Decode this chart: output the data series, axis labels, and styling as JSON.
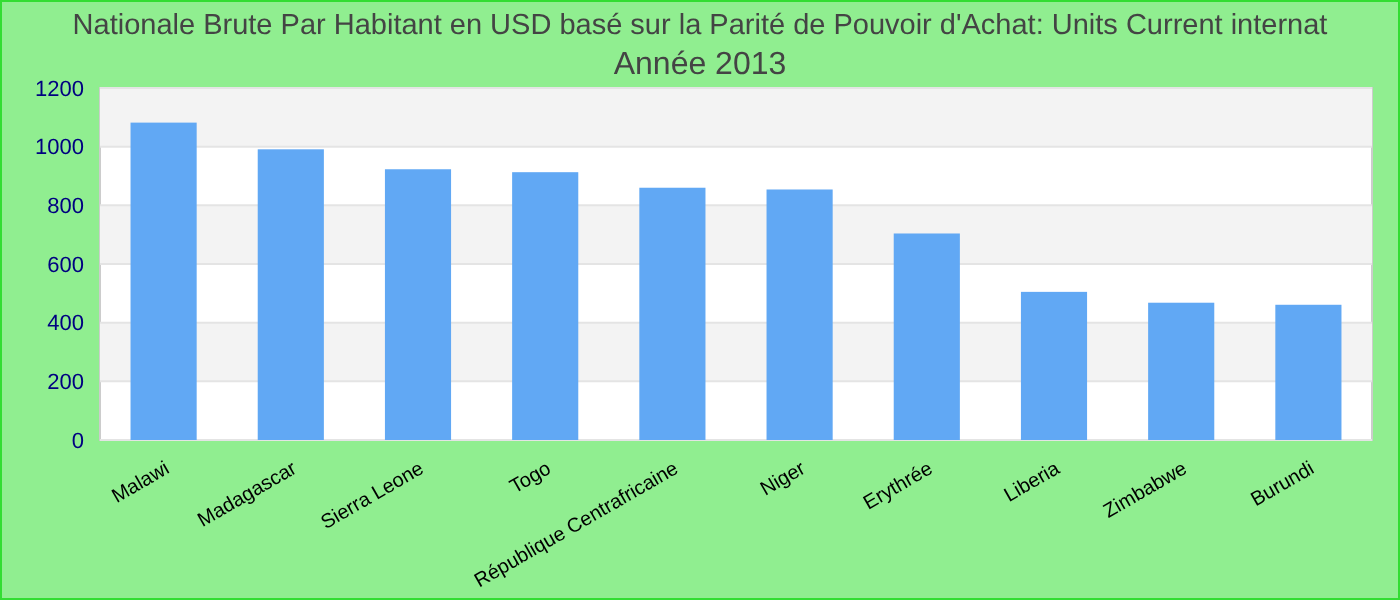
{
  "chart_data": {
    "type": "bar",
    "title": "Nationale Brute Par Habitant en USD basé sur la Parité de Pouvoir d'Achat: Units Current internat",
    "subtitle": "Année 2013",
    "categories": [
      "Malawi",
      "Madagascar",
      "Sierra Leone",
      "Togo",
      "République Centrafricaine",
      "Niger",
      "Erythrée",
      "Liberia",
      "Zimbabwe",
      "Burundi"
    ],
    "values": [
      1082,
      991,
      923,
      913,
      860,
      854,
      704,
      505,
      468,
      461
    ],
    "color": "#61a8f4",
    "ylim": [
      0,
      1200
    ],
    "yticks": [
      0,
      200,
      400,
      600,
      800,
      1000,
      1200
    ],
    "grid": "y"
  }
}
